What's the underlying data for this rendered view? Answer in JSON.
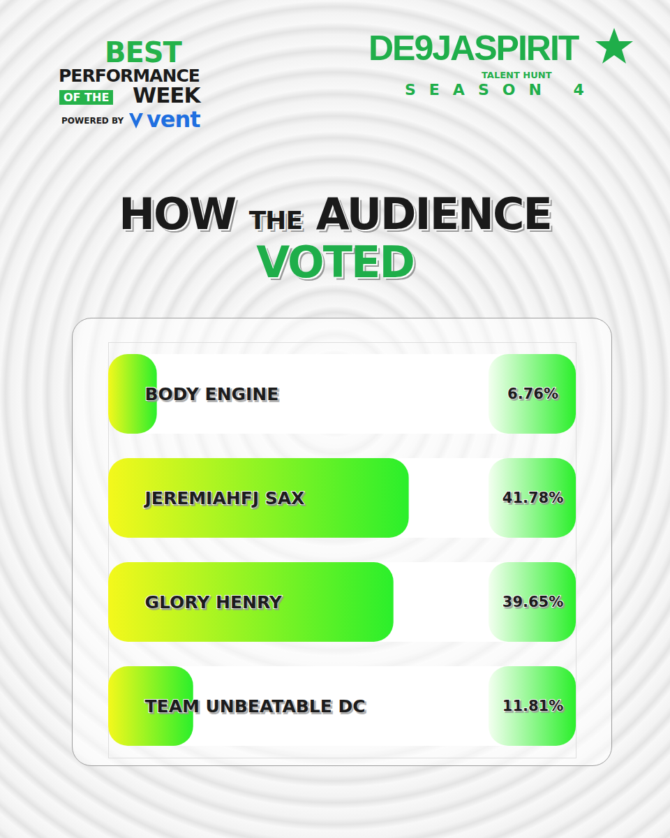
{
  "header": {
    "left": {
      "line1": "BEST",
      "line2": "PERFORMANCE",
      "line3a": "OF THE",
      "line3b": "WEEK",
      "powered": "POWERED BY",
      "brand": "vent"
    },
    "right": {
      "title": "DE9JASPIRIT",
      "subtitle": "TALENT HUNT",
      "season": "SEASON 4"
    }
  },
  "chart_data": {
    "type": "bar",
    "title": "HOW THE AUDIENCE VOTED",
    "orientation": "horizontal",
    "categories": [
      "BODY ENGINE",
      "JEREMIAHFJ SAX",
      "GLORY HENRY",
      "TEAM UNBEATABLE DC"
    ],
    "values": [
      6.76,
      41.78,
      39.65,
      11.81
    ],
    "value_labels": [
      "6.76%",
      "41.78%",
      "39.65%",
      "11.81%"
    ],
    "xlim": [
      0,
      65
    ],
    "data_labels": true,
    "tick_labels": "y",
    "color": "#2bef2b"
  }
}
